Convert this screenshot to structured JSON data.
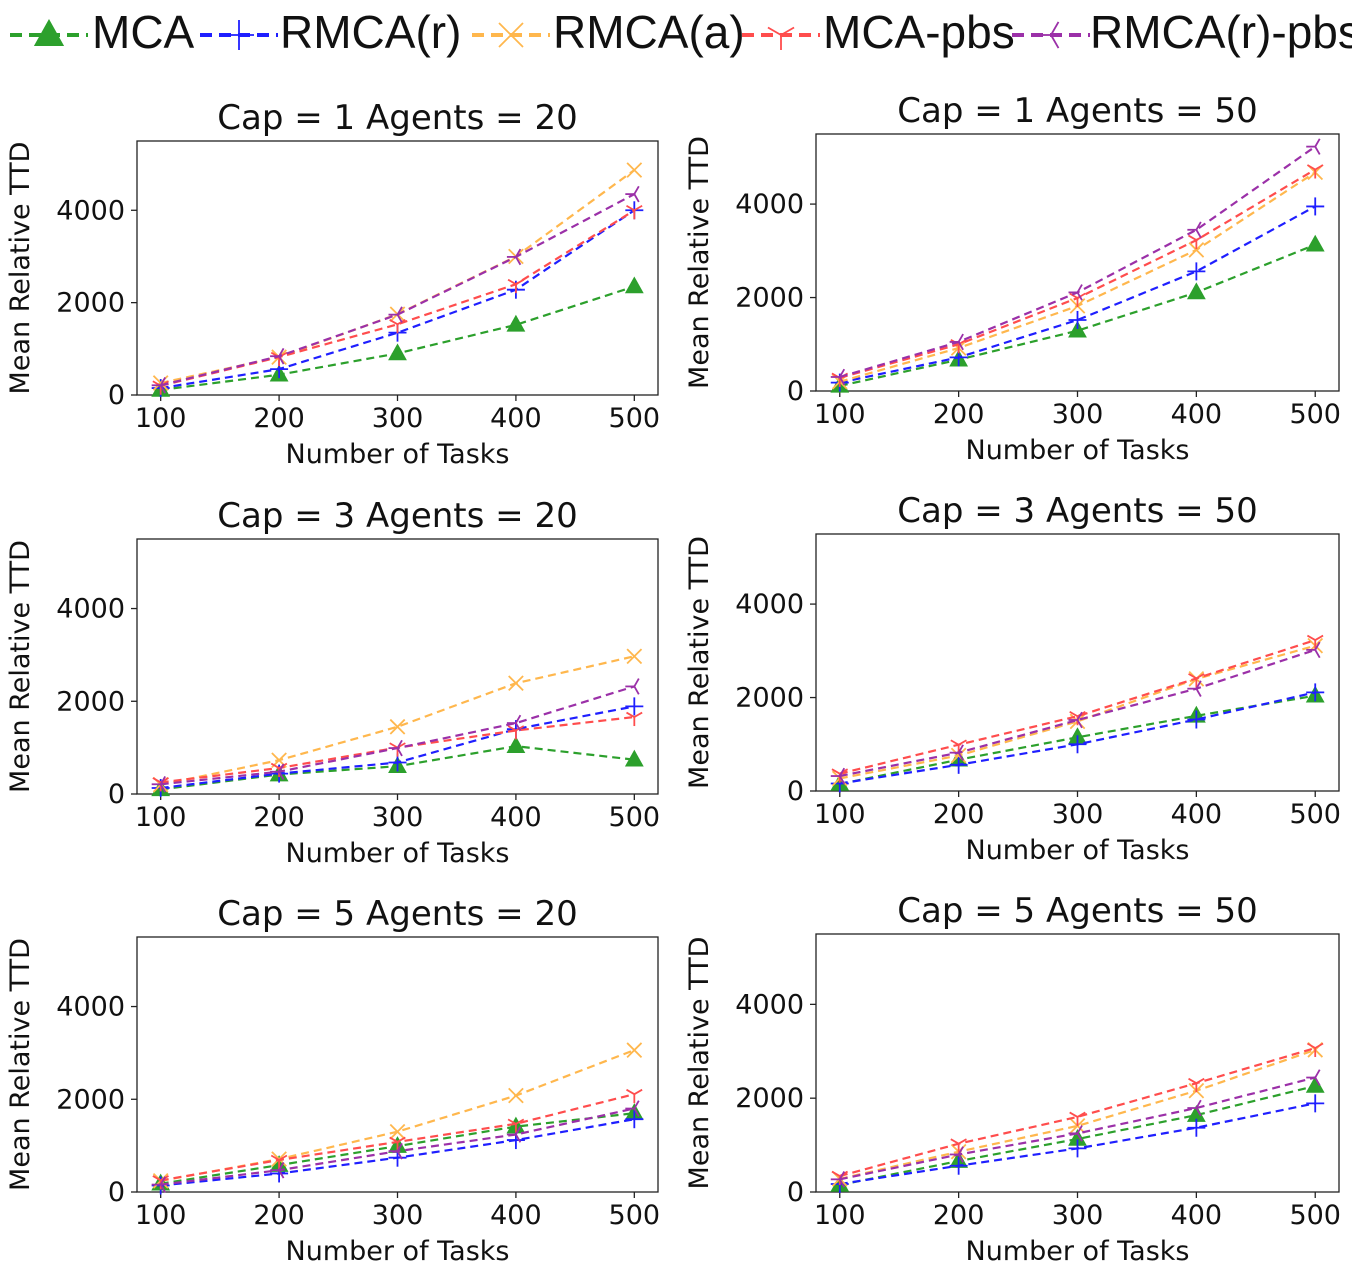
{
  "chart_data": {
    "legend": [
      {
        "name": "MCA",
        "color": "#2ca02c",
        "marker": "triangle"
      },
      {
        "name": "RMCA(r)",
        "color": "#1f1fff",
        "marker": "plus"
      },
      {
        "name": "RMCA(a)",
        "color": "#ffb74d",
        "marker": "x"
      },
      {
        "name": "MCA-pbs",
        "color": "#ff4d4d",
        "marker": "tri-down"
      },
      {
        "name": "RMCA(r)-pbs",
        "color": "#9b30a8",
        "marker": "tri-left"
      }
    ],
    "subplots": [
      {
        "type": "line",
        "title": "Cap = 1 Agents = 20",
        "xlabel": "Number of Tasks",
        "ylabel": "Mean Relative TTD",
        "x": [
          100,
          200,
          300,
          400,
          500
        ],
        "xticks": [
          "100",
          "200",
          "300",
          "400",
          "500"
        ],
        "yticks": [
          "0",
          "2000",
          "4000"
        ],
        "ylim": [
          0,
          5500
        ],
        "series": [
          {
            "name": "MCA",
            "values": [
              110,
              440,
              900,
              1520,
              2350
            ]
          },
          {
            "name": "RMCA(r)",
            "values": [
              150,
              560,
              1350,
              2280,
              4000
            ]
          },
          {
            "name": "RMCA(a)",
            "values": [
              260,
              820,
              1750,
              3000,
              4870
            ]
          },
          {
            "name": "MCA-pbs",
            "values": [
              200,
              820,
              1530,
              2400,
              4000
            ]
          },
          {
            "name": "RMCA(r)-pbs",
            "values": [
              210,
              840,
              1740,
              2990,
              4350
            ]
          }
        ]
      },
      {
        "type": "line",
        "title": "Cap = 1 Agents = 50",
        "xlabel": "Number of Tasks",
        "ylabel": "Mean Relative TTD",
        "x": [
          100,
          200,
          300,
          400,
          500
        ],
        "xticks": [
          "100",
          "200",
          "300",
          "400",
          "500"
        ],
        "yticks": [
          "0",
          "2000",
          "4000"
        ],
        "ylim": [
          0,
          5500
        ],
        "series": [
          {
            "name": "MCA",
            "values": [
              110,
              670,
              1290,
              2110,
              3130
            ]
          },
          {
            "name": "RMCA(r)",
            "values": [
              180,
              720,
              1520,
              2560,
              3950
            ]
          },
          {
            "name": "RMCA(a)",
            "values": [
              200,
              920,
              1820,
              3020,
              4680
            ]
          },
          {
            "name": "MCA-pbs",
            "values": [
              280,
              1000,
              1990,
              3230,
              4740
            ]
          },
          {
            "name": "RMCA(r)-pbs",
            "values": [
              300,
              1050,
              2110,
              3450,
              5230
            ]
          }
        ]
      },
      {
        "type": "line",
        "title": "Cap = 3 Agents = 20",
        "xlabel": "Number of Tasks",
        "ylabel": "Mean Relative TTD",
        "x": [
          100,
          200,
          300,
          400,
          500
        ],
        "xticks": [
          "100",
          "200",
          "300",
          "400",
          "500"
        ],
        "yticks": [
          "0",
          "2000",
          "4000"
        ],
        "ylim": [
          0,
          5500
        ],
        "series": [
          {
            "name": "MCA",
            "values": [
              100,
              420,
              600,
              1030,
              740
            ]
          },
          {
            "name": "RMCA(r)",
            "values": [
              130,
              440,
              680,
              1400,
              1890
            ]
          },
          {
            "name": "RMCA(a)",
            "values": [
              200,
              730,
              1450,
              2390,
              2970
            ]
          },
          {
            "name": "MCA-pbs",
            "values": [
              250,
              560,
              1000,
              1370,
              1660
            ]
          },
          {
            "name": "RMCA(r)-pbs",
            "values": [
              210,
              480,
              990,
              1530,
              2320
            ]
          }
        ]
      },
      {
        "type": "line",
        "title": "Cap = 3 Agents = 50",
        "xlabel": "Number of Tasks",
        "ylabel": "Mean Relative TTD",
        "x": [
          100,
          200,
          300,
          400,
          500
        ],
        "xticks": [
          "100",
          "200",
          "300",
          "400",
          "500"
        ],
        "yticks": [
          "0",
          "2000",
          "4000"
        ],
        "ylim": [
          0,
          5500
        ],
        "series": [
          {
            "name": "MCA",
            "values": [
              150,
              670,
              1150,
              1610,
              2040
            ]
          },
          {
            "name": "RMCA(r)",
            "values": [
              160,
              560,
              1000,
              1530,
              2110
            ]
          },
          {
            "name": "RMCA(a)",
            "values": [
              270,
              760,
              1490,
              2400,
              3110
            ]
          },
          {
            "name": "MCA-pbs",
            "values": [
              370,
              990,
              1600,
              2410,
              3230
            ]
          },
          {
            "name": "RMCA(r)-pbs",
            "values": [
              320,
              820,
              1520,
              2190,
              3020
            ]
          }
        ]
      },
      {
        "type": "line",
        "title": "Cap = 5 Agents = 20",
        "xlabel": "Number of Tasks",
        "ylabel": "Mean Relative TTD",
        "x": [
          100,
          200,
          300,
          400,
          500
        ],
        "xticks": [
          "100",
          "200",
          "300",
          "400",
          "500"
        ],
        "yticks": [
          "0",
          "2000",
          "4000"
        ],
        "ylim": [
          0,
          5500
        ],
        "series": [
          {
            "name": "MCA",
            "values": [
              180,
              580,
              990,
              1410,
              1700
            ]
          },
          {
            "name": "RMCA(r)",
            "values": [
              140,
              400,
              740,
              1120,
              1570
            ]
          },
          {
            "name": "RMCA(a)",
            "values": [
              240,
              710,
              1300,
              2080,
              3060
            ]
          },
          {
            "name": "MCA-pbs",
            "values": [
              250,
              690,
              1080,
              1470,
              2110
            ]
          },
          {
            "name": "RMCA(r)-pbs",
            "values": [
              160,
              470,
              880,
              1240,
              1800
            ]
          }
        ]
      },
      {
        "type": "line",
        "title": "Cap = 5 Agents = 50",
        "xlabel": "Number of Tasks",
        "ylabel": "Mean Relative TTD",
        "x": [
          100,
          200,
          300,
          400,
          500
        ],
        "xticks": [
          "100",
          "200",
          "300",
          "400",
          "500"
        ],
        "yticks": [
          "0",
          "2000",
          "4000"
        ],
        "ylim": [
          0,
          5500
        ],
        "series": [
          {
            "name": "MCA",
            "values": [
              150,
              660,
              1130,
              1640,
              2260
            ]
          },
          {
            "name": "RMCA(r)",
            "values": [
              170,
              560,
              930,
              1370,
              1890
            ]
          },
          {
            "name": "RMCA(a)",
            "values": [
              280,
              860,
              1410,
              2160,
              3030
            ]
          },
          {
            "name": "MCA-pbs",
            "values": [
              340,
              1030,
              1600,
              2320,
              3070
            ]
          },
          {
            "name": "RMCA(r)-pbs",
            "values": [
              270,
              800,
              1250,
              1790,
              2440
            ]
          }
        ]
      }
    ]
  }
}
